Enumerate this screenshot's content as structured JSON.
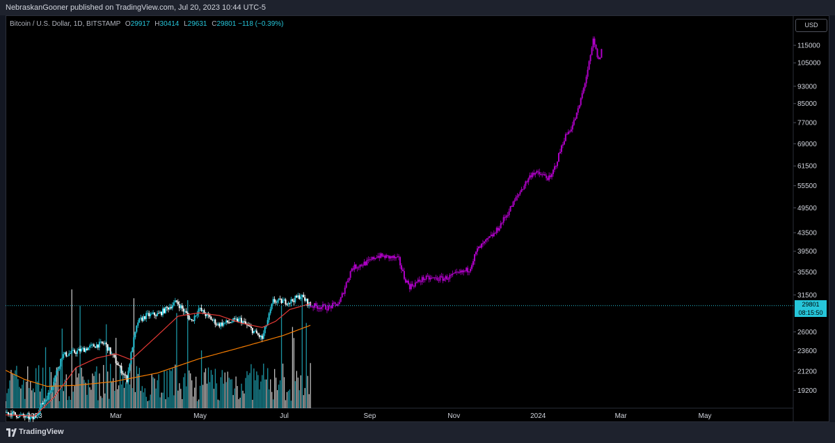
{
  "header": {
    "publisher_line": "NebraskanGooner published on TradingView.com, Jul 20, 2023 10:44 UTC-5"
  },
  "legend": {
    "symbol": "Bitcoin / U.S. Dollar, 1D, BITSTAMP",
    "open_label": "O",
    "open": "29917",
    "high_label": "H",
    "high": "30414",
    "low_label": "L",
    "low": "29631",
    "close_label": "C",
    "close": "29801",
    "change": "−118 (−0.39%)"
  },
  "currency_button": "USD",
  "last_price": {
    "value": "29801",
    "countdown": "08:15:50"
  },
  "footer": {
    "brand": "TradingView"
  },
  "colors": {
    "background": "#000000",
    "frame": "#131722",
    "up_candle": "#26c6da",
    "down_candle": "#ffffff",
    "projection": "#b000c8",
    "ma_red": "#e53935",
    "ma_orange": "#f57c00",
    "price_line": "#26c6da"
  },
  "chart_data": {
    "type": "candlestick",
    "y_scale": "log",
    "ylim": [
      17500,
      125000
    ],
    "y_ticks": [
      115000,
      105000,
      93000,
      85000,
      77000,
      69000,
      61500,
      55500,
      49500,
      43500,
      39500,
      35500,
      31500,
      26000,
      23600,
      21200,
      19200
    ],
    "x_range": [
      "2022-12-11",
      "2024-07-04"
    ],
    "x_ticks": [
      {
        "label": "2023",
        "date": "2023-01-01"
      },
      {
        "label": "Mar",
        "date": "2023-03-01"
      },
      {
        "label": "May",
        "date": "2023-05-01"
      },
      {
        "label": "Jul",
        "date": "2023-07-01"
      },
      {
        "label": "Sep",
        "date": "2023-09-01"
      },
      {
        "label": "Nov",
        "date": "2023-11-01"
      },
      {
        "label": "2024",
        "date": "2024-01-01"
      },
      {
        "label": "Mar",
        "date": "2024-03-01"
      },
      {
        "label": "May",
        "date": "2024-05-01"
      }
    ],
    "historical_anchors": [
      [
        "2022-12-11",
        17150
      ],
      [
        "2022-12-31",
        16550
      ],
      [
        "2023-01-12",
        19000
      ],
      [
        "2023-01-21",
        23000
      ],
      [
        "2023-02-01",
        23500
      ],
      [
        "2023-02-15",
        24300
      ],
      [
        "2023-02-21",
        24500
      ],
      [
        "2023-03-09",
        20300
      ],
      [
        "2023-03-13",
        24200
      ],
      [
        "2023-03-17",
        27400
      ],
      [
        "2023-03-23",
        28300
      ],
      [
        "2023-04-01",
        28500
      ],
      [
        "2023-04-14",
        30400
      ],
      [
        "2023-04-25",
        27500
      ],
      [
        "2023-04-30",
        29300
      ],
      [
        "2023-05-14",
        27000
      ],
      [
        "2023-05-30",
        27700
      ],
      [
        "2023-06-15",
        25100
      ],
      [
        "2023-06-20",
        28300
      ],
      [
        "2023-06-23",
        30500
      ],
      [
        "2023-07-05",
        30400
      ],
      [
        "2023-07-13",
        31400
      ],
      [
        "2023-07-20",
        29801
      ]
    ],
    "projection_anchors": [
      [
        "2023-07-20",
        29801
      ],
      [
        "2023-08-02",
        29500
      ],
      [
        "2023-08-10",
        30200
      ],
      [
        "2023-08-15",
        33500
      ],
      [
        "2023-08-19",
        36200
      ],
      [
        "2023-09-01",
        37500
      ],
      [
        "2023-09-06",
        38600
      ],
      [
        "2023-09-18",
        38200
      ],
      [
        "2023-09-22",
        37800
      ],
      [
        "2023-09-26",
        34500
      ],
      [
        "2023-09-30",
        32900
      ],
      [
        "2023-10-10",
        34300
      ],
      [
        "2023-10-25",
        34300
      ],
      [
        "2023-11-05",
        35200
      ],
      [
        "2023-11-12",
        36000
      ],
      [
        "2023-11-18",
        39800
      ],
      [
        "2023-12-01",
        43500
      ],
      [
        "2023-12-10",
        48200
      ],
      [
        "2023-12-20",
        54500
      ],
      [
        "2023-12-28",
        59500
      ],
      [
        "2024-01-05",
        58500
      ],
      [
        "2024-01-10",
        57500
      ],
      [
        "2024-01-15",
        63500
      ],
      [
        "2024-01-20",
        71000
      ],
      [
        "2024-01-26",
        76000
      ],
      [
        "2024-01-30",
        82000
      ],
      [
        "2024-02-03",
        92000
      ],
      [
        "2024-02-08",
        108000
      ],
      [
        "2024-02-10",
        118000
      ],
      [
        "2024-02-14",
        106000
      ],
      [
        "2024-02-16",
        112000
      ]
    ],
    "ma_short": [
      [
        "2022-12-11",
        16900
      ],
      [
        "2023-01-01",
        16800
      ],
      [
        "2023-01-15",
        18500
      ],
      [
        "2023-01-31",
        21600
      ],
      [
        "2023-02-15",
        22700
      ],
      [
        "2023-03-01",
        23200
      ],
      [
        "2023-03-12",
        22500
      ],
      [
        "2023-03-31",
        25500
      ],
      [
        "2023-04-15",
        28200
      ],
      [
        "2023-04-30",
        28700
      ],
      [
        "2023-05-15",
        28300
      ],
      [
        "2023-05-31",
        27200
      ],
      [
        "2023-06-15",
        26600
      ],
      [
        "2023-06-25",
        27500
      ],
      [
        "2023-07-05",
        29200
      ],
      [
        "2023-07-20",
        30100
      ]
    ],
    "ma_long": [
      [
        "2022-12-11",
        21300
      ],
      [
        "2022-12-25",
        20300
      ],
      [
        "2023-01-10",
        19600
      ],
      [
        "2023-01-31",
        19700
      ],
      [
        "2023-02-28",
        20100
      ],
      [
        "2023-03-31",
        21000
      ],
      [
        "2023-04-30",
        22600
      ],
      [
        "2023-05-31",
        24000
      ],
      [
        "2023-06-30",
        25500
      ],
      [
        "2023-07-20",
        26900
      ]
    ]
  }
}
